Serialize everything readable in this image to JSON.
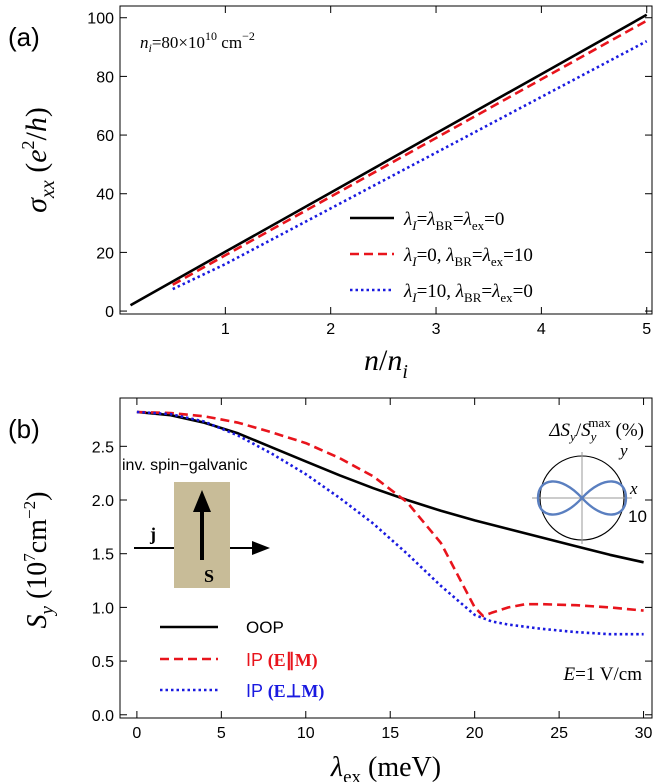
{
  "chart_data": [
    {
      "panel_label": "(a)",
      "type": "line",
      "annotation": "n_i=80×10^10 cm^−2",
      "xlabel": "n/n_i",
      "ylabel": "σ_xx (e²/h)",
      "xlim": [
        0,
        5.05
      ],
      "ylim": [
        -1,
        104
      ],
      "xticks": [
        "1",
        "2",
        "3",
        "4",
        "5"
      ],
      "yticks": [
        "0",
        "20",
        "40",
        "60",
        "80",
        "100"
      ],
      "legend_position": "bottom-right",
      "series": [
        {
          "name": "λ_I=λ_BR=λ_ex=0",
          "color": "#000000",
          "dash": "solid",
          "x": [
            0.1,
            1,
            2,
            3,
            4,
            5
          ],
          "y": [
            2,
            20.2,
            40.4,
            60.6,
            80.8,
            101
          ]
        },
        {
          "name": "λ_I=0, λ_BR=λ_ex=10",
          "color": "#e8141c",
          "dash": "dashed",
          "x": [
            0.5,
            1,
            2,
            3,
            4,
            5
          ],
          "y": [
            9,
            19,
            39,
            59,
            79,
            99
          ]
        },
        {
          "name": "λ_I=10, λ_BR=λ_ex=0",
          "color": "#1a1ae0",
          "dash": "dotted",
          "x": [
            0.5,
            1,
            2,
            3,
            4,
            5
          ],
          "y": [
            7.5,
            16,
            35,
            54,
            73,
            92
          ]
        }
      ]
    },
    {
      "panel_label": "(b)",
      "type": "line",
      "xlabel": "λ_ex (meV)",
      "ylabel": "S_y (10⁷cm⁻²)",
      "xlim": [
        -1,
        30.5
      ],
      "ylim": [
        -0.03,
        2.95
      ],
      "xticks": [
        "0",
        "5",
        "10",
        "15",
        "20",
        "25",
        "30"
      ],
      "yticks": [
        "0.0",
        "0.5",
        "1.0",
        "1.5",
        "2.0",
        "2.5"
      ],
      "annotation": "E=1 V/cm",
      "inset_polar_label": "ΔS_y/S_y^max (%)",
      "inset_polar_axes": {
        "x": "x",
        "y": "y",
        "radius": "10"
      },
      "schematic": {
        "title": "inv. spin−galvanic",
        "current": "j",
        "spin": "S"
      },
      "legend_position": "bottom-left",
      "series": [
        {
          "name": "OOP",
          "color": "#000000",
          "dash": "solid",
          "x": [
            0,
            2,
            4,
            6,
            8,
            10,
            12,
            14,
            16,
            18,
            20,
            22,
            24,
            26,
            28,
            30
          ],
          "y": [
            2.82,
            2.79,
            2.72,
            2.62,
            2.49,
            2.36,
            2.23,
            2.11,
            2.0,
            1.9,
            1.81,
            1.73,
            1.65,
            1.57,
            1.49,
            1.42
          ]
        },
        {
          "name": "IP (E∥M)",
          "color": "#e8141c",
          "dash": "dashed",
          "x": [
            0,
            2,
            4,
            6,
            8,
            10,
            12,
            14,
            16,
            18,
            19,
            20,
            20.5,
            21,
            22,
            23,
            24,
            26,
            28,
            30
          ],
          "y": [
            2.82,
            2.81,
            2.78,
            2.72,
            2.63,
            2.53,
            2.39,
            2.22,
            1.98,
            1.6,
            1.3,
            1.0,
            0.92,
            0.95,
            1.0,
            1.03,
            1.03,
            1.02,
            1.0,
            0.97
          ]
        },
        {
          "name": "IP (E⊥M)",
          "color": "#1a1ae0",
          "dash": "dotted",
          "x": [
            0,
            2,
            4,
            6,
            8,
            10,
            12,
            14,
            16,
            18,
            20,
            21,
            22,
            24,
            26,
            28,
            30
          ],
          "y": [
            2.82,
            2.8,
            2.73,
            2.6,
            2.43,
            2.24,
            2.02,
            1.78,
            1.5,
            1.2,
            0.93,
            0.87,
            0.84,
            0.8,
            0.77,
            0.75,
            0.75
          ]
        }
      ]
    }
  ]
}
